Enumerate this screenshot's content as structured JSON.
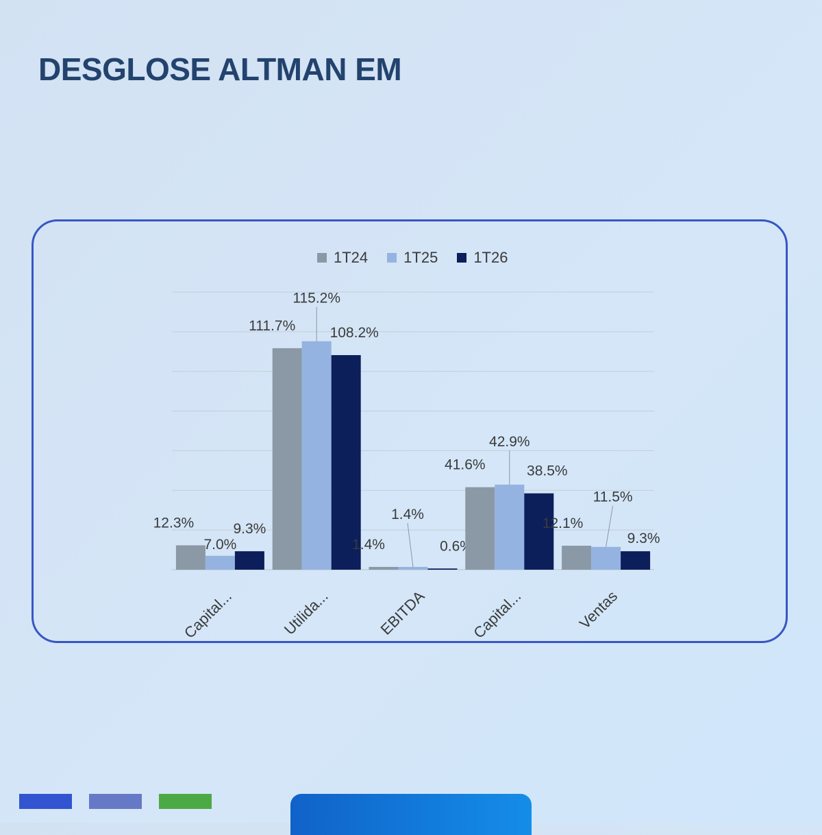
{
  "page": {
    "title": "DESGLOSE ALTMAN EM"
  },
  "colors": {
    "1T24": "#8b99a6",
    "1T25": "#95b3e0",
    "1T26": "#0c1f5a",
    "card_border": "#3756c4",
    "title": "#23436e",
    "bar_a": "#3254d0",
    "bar_b": "#6679c6",
    "bar_c": "#4caa44"
  },
  "chart_data": {
    "type": "bar",
    "title": "",
    "xlabel": "",
    "ylabel": "",
    "categories": [
      "Capital...",
      "Utilida...",
      "EBITDA",
      "Capital...",
      "Ventas"
    ],
    "series": [
      {
        "name": "1T24",
        "values": [
          12.3,
          111.7,
          1.4,
          41.6,
          12.1
        ],
        "labels": [
          "12.3%",
          "111.7%",
          "1.4%",
          "41.6%",
          "12.1%"
        ]
      },
      {
        "name": "1T25",
        "values": [
          7.0,
          115.2,
          1.4,
          42.9,
          11.5
        ],
        "labels": [
          "7.0%",
          "115.2%",
          "1.4%",
          "42.9%",
          "11.5%"
        ]
      },
      {
        "name": "1T26",
        "values": [
          9.3,
          108.2,
          0.6,
          38.5,
          9.3
        ],
        "labels": [
          "9.3%",
          "108.2%",
          "0.6%",
          "38.5%",
          "9.3%"
        ]
      }
    ],
    "ylim": [
      0,
      140
    ],
    "y_gridlines": 7,
    "y_tick_labels_shown": false,
    "grid": true,
    "legend_position": "top"
  }
}
